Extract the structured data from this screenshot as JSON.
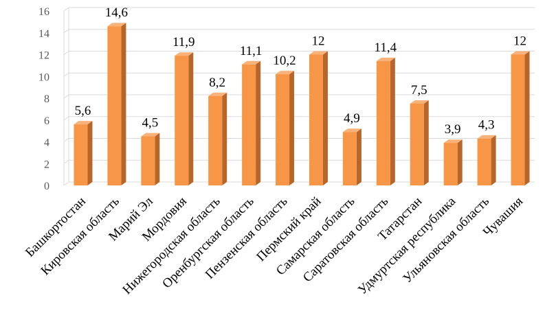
{
  "chart_data": {
    "type": "bar",
    "categories": [
      "Башкортостан",
      "Кировская область",
      "Марий Эл",
      "Мордовия",
      "Нижегородская область",
      "Оренбургская область",
      "Пензенская область",
      "Пермский край",
      "Самарская область",
      "Саратовская область",
      "Татарстан",
      "Удмуртская республика",
      "Ульяновская область",
      "Чувашия"
    ],
    "values": [
      5.6,
      14.6,
      4.5,
      11.9,
      8.2,
      11.1,
      10.2,
      12,
      4.9,
      11.4,
      7.5,
      3.9,
      4.3,
      12
    ],
    "data_labels": [
      "5,6",
      "14,6",
      "4,5",
      "11,9",
      "8,2",
      "11,1",
      "10,2",
      "12",
      "4,9",
      "11,4",
      "7,5",
      "3,9",
      "4,3",
      "12"
    ],
    "yticks": [
      "0",
      "2",
      "4",
      "6",
      "8",
      "10",
      "12",
      "14",
      "16"
    ],
    "ylim": [
      0,
      16
    ],
    "grid": true,
    "legend": "none",
    "title": "",
    "xlabel": "",
    "ylabel": "",
    "colors": {
      "bar_front": "#f79646",
      "bar_side": "#b8652a",
      "bar_top": "#f9b27a",
      "grid": "#d9d9d9"
    }
  }
}
